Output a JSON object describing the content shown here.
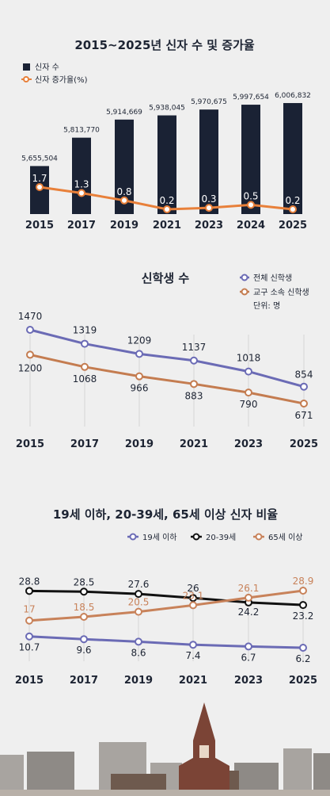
{
  "charts": {
    "newcomers": {
      "title": "2015~2025년 신자 수 및 증가율",
      "legend": {
        "bars": "신자 수",
        "line": "신자 증가율(%)"
      },
      "colors": {
        "bar": "#1a2234",
        "line": "#e8803a"
      }
    },
    "students": {
      "title": "신학생 수",
      "legend": {
        "a": "전체 신학생",
        "b": "교구 소속 신학생"
      },
      "unit": "단위: 명",
      "colors": {
        "a": "#6b6bb5",
        "b": "#c47c50"
      }
    },
    "ages": {
      "title": "19세 이하, 20-39세, 65세 이상 신자 비율",
      "legend": {
        "a": "19세 이하",
        "b": "20-39세",
        "c": "65세 이상"
      },
      "colors": {
        "a": "#6b6bb5",
        "b": "#111111",
        "c": "#c8825a"
      }
    }
  },
  "chart_data": [
    {
      "type": "bar",
      "title": "2015~2025년 신자 수 및 증가율",
      "categories": [
        "2015",
        "2017",
        "2019",
        "2021",
        "2023",
        "2024",
        "2025"
      ],
      "series": [
        {
          "name": "신자 수",
          "type": "bar",
          "values": [
            5655504,
            5813770,
            5914669,
            5938045,
            5970675,
            5997654,
            6006832
          ],
          "labels": [
            "5,655,504",
            "5,813,770",
            "5,914,669",
            "5,938,045",
            "5,970,675",
            "5,997,654",
            "6,006,832"
          ]
        },
        {
          "name": "신자 증가율(%)",
          "type": "line",
          "values": [
            1.7,
            1.3,
            0.8,
            0.2,
            0.3,
            0.5,
            0.2
          ],
          "labels": [
            "1.7",
            "1.3",
            "0.8",
            "0.2",
            "0.3",
            "0.5",
            "0.2"
          ]
        }
      ],
      "legend": "top-left",
      "grid": false
    },
    {
      "type": "line",
      "title": "신학생 수",
      "categories": [
        "2015",
        "2017",
        "2019",
        "2021",
        "2023",
        "2025"
      ],
      "series": [
        {
          "name": "전체 신학생",
          "values": [
            1470,
            1319,
            1209,
            1137,
            1018,
            854
          ]
        },
        {
          "name": "교구 소속 신학생",
          "values": [
            1200,
            1068,
            966,
            883,
            790,
            671
          ]
        }
      ],
      "unit": "단위: 명",
      "legend": "top-right",
      "grid": false
    },
    {
      "type": "line",
      "title": "19세 이하, 20-39세, 65세 이상 신자 비율",
      "categories": [
        "2015",
        "2017",
        "2019",
        "2021",
        "2023",
        "2025"
      ],
      "series": [
        {
          "name": "19세 이하",
          "values": [
            10.7,
            9.6,
            8.6,
            7.4,
            6.7,
            6.2
          ]
        },
        {
          "name": "20-39세",
          "values": [
            28.8,
            28.5,
            27.6,
            26,
            24.2,
            23.2
          ]
        },
        {
          "name": "65세 이상",
          "values": [
            17,
            18.5,
            20.5,
            23.1,
            26.1,
            28.9
          ]
        }
      ],
      "legend": "top-right",
      "grid": false
    }
  ]
}
